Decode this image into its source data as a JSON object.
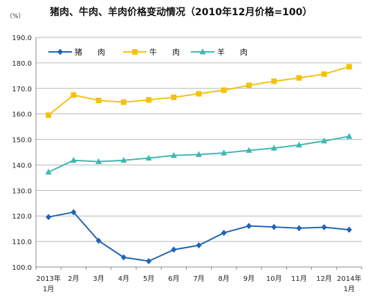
{
  "chart_data": {
    "type": "line",
    "title": "猪肉、牛肉、羊肉价格变动情况（2010年12月价格=100）",
    "yunit": "（%）",
    "ylim": [
      100,
      190
    ],
    "yticks": [
      "100.0",
      "110.0",
      "120.0",
      "130.0",
      "140.0",
      "150.0",
      "160.0",
      "170.0",
      "180.0",
      "190.0"
    ],
    "categories": [
      [
        "2013年",
        "1月"
      ],
      [
        "2月"
      ],
      [
        "3月"
      ],
      [
        "4月"
      ],
      [
        "5月"
      ],
      [
        "6月"
      ],
      [
        "7月"
      ],
      [
        "8月"
      ],
      [
        "9月"
      ],
      [
        "10月"
      ],
      [
        "11月"
      ],
      [
        "12月"
      ],
      [
        "2014年",
        "1月"
      ]
    ],
    "grid": true,
    "legend_position": "top-left",
    "series": [
      {
        "name": "猪　　肉",
        "color": "#1f63b5",
        "marker": "diamond",
        "values": [
          119.6,
          121.5,
          110.3,
          103.8,
          102.3,
          106.8,
          108.5,
          113.4,
          116.1,
          115.7,
          115.2,
          115.6,
          114.6
        ]
      },
      {
        "name": "牛　　肉",
        "color": "#f4c20d",
        "marker": "square",
        "values": [
          159.5,
          167.4,
          165.3,
          164.6,
          165.5,
          166.5,
          167.9,
          169.3,
          171.2,
          172.8,
          174.1,
          175.6,
          178.5
        ]
      },
      {
        "name": "羊　　肉",
        "color": "#3cb8b2",
        "marker": "triangle",
        "values": [
          137.2,
          141.8,
          141.3,
          141.8,
          142.7,
          143.7,
          144.1,
          144.7,
          145.7,
          146.6,
          147.8,
          149.4,
          151.2
        ]
      }
    ]
  }
}
